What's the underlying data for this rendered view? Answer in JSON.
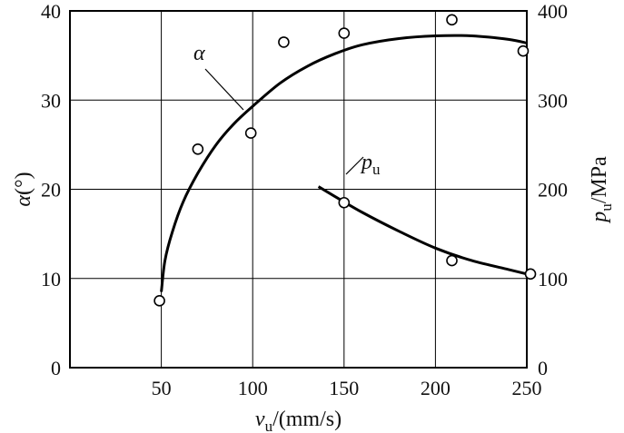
{
  "chart_data": {
    "type": "scatter",
    "xlabel": {
      "main": "v",
      "sub": "u",
      "rest": "/(mm/s)"
    },
    "ylabel_left": {
      "main": "α",
      "rest": "(°)"
    },
    "ylabel_right": {
      "main": "p",
      "sub": "u",
      "rest": "/MPa"
    },
    "xlim": [
      0,
      250
    ],
    "ylim_left": [
      0,
      40
    ],
    "ylim_right": [
      0,
      400
    ],
    "xticks": [
      50,
      100,
      150,
      200,
      250
    ],
    "yticks_left": [
      0,
      10,
      20,
      30,
      40
    ],
    "yticks_right": [
      0,
      100,
      200,
      300,
      400
    ],
    "grid": true,
    "series": [
      {
        "name": "α",
        "label": {
          "main": "α"
        },
        "axis": "left",
        "points": [
          [
            49,
            7.5
          ],
          [
            70,
            24.5
          ],
          [
            99,
            26.3
          ],
          [
            117,
            36.5
          ],
          [
            150,
            37.5
          ],
          [
            209,
            39
          ],
          [
            248,
            35.5
          ]
        ],
        "fit": [
          [
            50,
            8.5
          ],
          [
            52,
            12.0
          ],
          [
            56,
            15.2
          ],
          [
            62,
            18.6
          ],
          [
            70,
            21.8
          ],
          [
            80,
            25.0
          ],
          [
            90,
            27.4
          ],
          [
            100,
            29.3
          ],
          [
            115,
            31.9
          ],
          [
            130,
            33.8
          ],
          [
            145,
            35.2
          ],
          [
            160,
            36.2
          ],
          [
            180,
            36.9
          ],
          [
            200,
            37.2
          ],
          [
            220,
            37.2
          ],
          [
            240,
            36.8
          ],
          [
            250,
            36.4
          ]
        ]
      },
      {
        "name": "p_u",
        "label": {
          "main": "p",
          "sub": "u"
        },
        "axis": "right",
        "points": [
          [
            150,
            185
          ],
          [
            209,
            120
          ],
          [
            252,
            105
          ]
        ],
        "fit": [
          [
            136,
            203
          ],
          [
            145,
            192
          ],
          [
            160,
            174
          ],
          [
            180,
            153
          ],
          [
            200,
            134
          ],
          [
            220,
            120
          ],
          [
            240,
            110
          ],
          [
            252,
            104
          ]
        ]
      }
    ]
  }
}
